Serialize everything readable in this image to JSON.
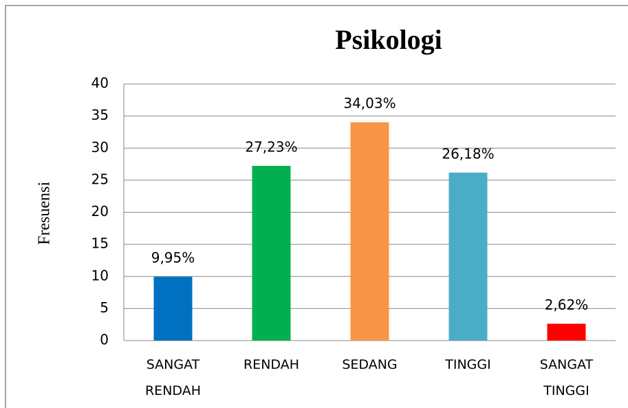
{
  "chart_data": {
    "type": "bar",
    "title": "Psikologi",
    "y_label": "Fresuensi",
    "categories": [
      "SANGAT RENDAH",
      "RENDAH",
      "SEDANG",
      "TINGGI",
      "SANGAT TINGGI"
    ],
    "values": [
      9.95,
      27.23,
      34.03,
      26.18,
      2.62
    ],
    "value_labels": [
      "9,95%",
      "27,23%",
      "34,03%",
      "26,18%",
      "2,62%"
    ],
    "colors": [
      "#0070c0",
      "#00b050",
      "#f79646",
      "#4bacc6",
      "#ff0000"
    ],
    "ylim": [
      0,
      40
    ],
    "yticks": [
      0,
      5,
      10,
      15,
      20,
      25,
      30,
      35,
      40
    ],
    "grid": true
  }
}
